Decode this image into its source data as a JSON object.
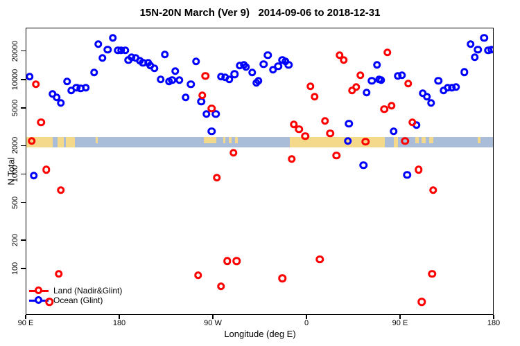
{
  "chart_data": {
    "type": "scatter",
    "title": "15N-20N March (Ver 9)   2014-09-06 to 2018-12-31",
    "xlabel": "Longitude (deg E)",
    "ylabel": "N Total",
    "x_axis": {
      "range": [
        90,
        540
      ],
      "ticks": [
        {
          "lon": 90,
          "label": "90 E"
        },
        {
          "lon": 180,
          "label": "180"
        },
        {
          "lon": 270,
          "label": "90 W"
        },
        {
          "lon": 360,
          "label": "0"
        },
        {
          "lon": 450,
          "label": "90 E"
        },
        {
          "lon": 540,
          "label": "180"
        }
      ]
    },
    "y_axis": {
      "scale": "log",
      "range_bottom": 32.3,
      "range_top": 35300,
      "ticks": [
        100,
        200,
        500,
        1000,
        2000,
        5000,
        10000,
        20000
      ]
    },
    "map_band": {
      "value_top": 2510,
      "value_bottom": 1950,
      "ocean_color": "#a9bdd9",
      "land_color": "#f5d98b",
      "land_segments": [
        {
          "from": 90,
          "to": 115.3,
          "extent": "full"
        },
        {
          "from": 120,
          "to": 126,
          "extent": "full"
        },
        {
          "from": 128,
          "to": 136.7,
          "extent": "full"
        },
        {
          "from": 156.5,
          "to": 158.5,
          "extent": "top"
        },
        {
          "from": 260.7,
          "to": 272.7,
          "extent": "top"
        },
        {
          "from": 279,
          "to": 281.5,
          "extent": "top"
        },
        {
          "from": 284.5,
          "to": 287.5,
          "extent": "top"
        },
        {
          "from": 290.5,
          "to": 293.5,
          "extent": "top"
        },
        {
          "from": 343.3,
          "to": 434.7,
          "extent": "full"
        },
        {
          "from": 443.3,
          "to": 447.3,
          "extent": "full"
        },
        {
          "from": 464,
          "to": 467,
          "extent": "top"
        },
        {
          "from": 470,
          "to": 474,
          "extent": "top"
        },
        {
          "from": 477,
          "to": 481,
          "extent": "top"
        },
        {
          "from": 524,
          "to": 526.5,
          "extent": "top"
        }
      ]
    },
    "series": [
      {
        "name": "Land (Nadir&Glint)",
        "color": "#ff0000",
        "points": [
          [
            99,
            9040
          ],
          [
            104,
            3570
          ],
          [
            95,
            2270
          ],
          [
            262,
            11100
          ],
          [
            259,
            6900
          ],
          [
            268,
            5010
          ],
          [
            391,
            18400
          ],
          [
            395,
            16300
          ],
          [
            411,
            11300
          ],
          [
            407,
            8450
          ],
          [
            403,
            7760
          ],
          [
            363,
            8590
          ],
          [
            367,
            6670
          ],
          [
            347,
            3400
          ],
          [
            352,
            3020
          ],
          [
            358,
            2550
          ],
          [
            377,
            3700
          ],
          [
            382,
            2730
          ],
          [
            416,
            2230
          ],
          [
            437,
            19600
          ],
          [
            457,
            9190
          ],
          [
            434,
            4920
          ],
          [
            441,
            5360
          ],
          [
            461,
            3570
          ],
          [
            454,
            2270
          ],
          [
            109,
            1130
          ],
          [
            123,
            684
          ],
          [
            121,
            89
          ],
          [
            112,
            45
          ],
          [
            289,
            1700
          ],
          [
            273,
            930
          ],
          [
            283,
            122
          ],
          [
            292,
            122
          ],
          [
            255,
            86
          ],
          [
            277,
            66
          ],
          [
            345,
            1460
          ],
          [
            388,
            1590
          ],
          [
            372,
            127
          ],
          [
            336,
            80
          ],
          [
            467,
            1130
          ],
          [
            481,
            684
          ],
          [
            480,
            89
          ],
          [
            470,
            45
          ]
        ]
      },
      {
        "name": "Ocean (Glint)",
        "color": "#0000ff",
        "points": [
          [
            93,
            10900
          ],
          [
            115,
            7140
          ],
          [
            119,
            6560
          ],
          [
            123,
            5730
          ],
          [
            129,
            9670
          ],
          [
            133,
            7760
          ],
          [
            138,
            8310
          ],
          [
            142,
            8170
          ],
          [
            147,
            8310
          ],
          [
            155,
            12000
          ],
          [
            159,
            24000
          ],
          [
            163,
            17200
          ],
          [
            168,
            21000
          ],
          [
            173,
            28000
          ],
          [
            178,
            20700
          ],
          [
            181,
            20700
          ],
          [
            185,
            20700
          ],
          [
            188,
            16300
          ],
          [
            191,
            17400
          ],
          [
            195,
            17200
          ],
          [
            199,
            16000
          ],
          [
            202,
            15200
          ],
          [
            207,
            15200
          ],
          [
            209,
            14300
          ],
          [
            213,
            13300
          ],
          [
            223,
            18700
          ],
          [
            219,
            10200
          ],
          [
            227,
            9670
          ],
          [
            230,
            10000
          ],
          [
            233,
            12500
          ],
          [
            237,
            10000
          ],
          [
            243,
            6560
          ],
          [
            248,
            9040
          ],
          [
            253,
            15800
          ],
          [
            258,
            5930
          ],
          [
            263,
            4370
          ],
          [
            268,
            2870
          ],
          [
            272,
            4370
          ],
          [
            277,
            10900
          ],
          [
            281,
            10700
          ],
          [
            285,
            10200
          ],
          [
            290,
            11600
          ],
          [
            295,
            14300
          ],
          [
            299,
            14500
          ],
          [
            301,
            13800
          ],
          [
            307,
            12000
          ],
          [
            311,
            9350
          ],
          [
            313,
            9830
          ],
          [
            322,
            18400
          ],
          [
            318,
            14700
          ],
          [
            327,
            12900
          ],
          [
            332,
            14000
          ],
          [
            336,
            16300
          ],
          [
            339,
            15800
          ],
          [
            342,
            14500
          ],
          [
            427,
            14500
          ],
          [
            422,
            9830
          ],
          [
            429,
            10200
          ],
          [
            417,
            7380
          ],
          [
            400,
            3460
          ],
          [
            399,
            2270
          ],
          [
            431,
            10000
          ],
          [
            447,
            11100
          ],
          [
            451,
            11300
          ],
          [
            486,
            9830
          ],
          [
            491,
            7760
          ],
          [
            495,
            8310
          ],
          [
            499,
            8310
          ],
          [
            503,
            8450
          ],
          [
            511,
            12200
          ],
          [
            517,
            24000
          ],
          [
            521,
            17400
          ],
          [
            524,
            21000
          ],
          [
            530,
            28000
          ],
          [
            534,
            20700
          ],
          [
            537,
            21000
          ],
          [
            471,
            7260
          ],
          [
            475,
            6670
          ],
          [
            479,
            5730
          ],
          [
            443,
            2870
          ],
          [
            465,
            3340
          ],
          [
            456,
            990
          ],
          [
            97,
            980
          ],
          [
            414,
            1260
          ]
        ]
      }
    ],
    "legend_position": "bottom-left"
  }
}
